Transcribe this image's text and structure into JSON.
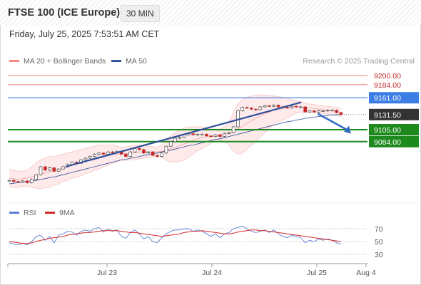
{
  "header": {
    "title": "FTSE 100 (ICE Europe)",
    "timeframe": "30 MIN",
    "datetime": "Friday, July 25, 2025 7:53:51 AM CET",
    "copyright": "Research © 2025 Trading Central"
  },
  "legend": {
    "bollinger": {
      "label": "MA 20 + Bollinger Bands",
      "color": "#f28b82"
    },
    "ma50": {
      "label": "MA 50",
      "color": "#2e5a9c"
    }
  },
  "sub_legend": {
    "rsi": {
      "label": "RSI",
      "color": "#5b7fd6"
    },
    "ma9": {
      "label": "9MA",
      "color": "#d62728"
    }
  },
  "colors": {
    "up_candle": "#ffffff",
    "down_candle": "#c62828",
    "support": "#1e8a1e",
    "resistance": "#f08080",
    "pivot": "#3d7ee6",
    "price": "#333333",
    "trendline": "#2f4f9a"
  },
  "chart_data": [
    {
      "type": "line",
      "chart": "price",
      "x_axis": {
        "ticks": [
          "Jul 23",
          "Jul 24",
          "Jul 25",
          "Aug 4"
        ]
      },
      "y_axis": {
        "ticks": []
      },
      "levels": [
        {
          "name": "resistance-2",
          "value": 9200.0,
          "label": "9200.00",
          "kind": "resistance"
        },
        {
          "name": "resistance-1",
          "value": 9184.0,
          "label": "9184.00",
          "kind": "resistance"
        },
        {
          "name": "pivot",
          "value": 9161.0,
          "label": "9161.00",
          "kind": "pivot"
        },
        {
          "name": "last-price",
          "value": 9131.5,
          "label": "9131.50",
          "kind": "price"
        },
        {
          "name": "support-1",
          "value": 9105.0,
          "label": "9105.00",
          "kind": "support"
        },
        {
          "name": "support-2",
          "value": 9084.0,
          "label": "9084.00",
          "kind": "support"
        }
      ],
      "close": [
        9016,
        9014,
        9013,
        9015,
        9012,
        9018,
        9026,
        9040,
        9034,
        9038,
        9032,
        9036,
        9040,
        9044,
        9048,
        9046,
        9052,
        9055,
        9058,
        9062,
        9064,
        9062,
        9066,
        9065,
        9067,
        9062,
        9058,
        9066,
        9072,
        9070,
        9064,
        9066,
        9060,
        9058,
        9064,
        9076,
        9084,
        9090,
        9092,
        9096,
        9098,
        9096,
        9097,
        9097,
        9094,
        9093,
        9096,
        9093,
        9098,
        9100,
        9110,
        9138,
        9144,
        9143,
        9141,
        9140,
        9145,
        9147,
        9146,
        9148,
        9145,
        9144,
        9143,
        9146,
        9145,
        9145,
        9136,
        9138,
        9136,
        9138,
        9138,
        9139,
        9139,
        9135,
        9131.5
      ],
      "ma20": [
        9020,
        9019,
        9018,
        9019,
        9020,
        9022,
        9024,
        9027,
        9029,
        9031,
        9033,
        9035,
        9038,
        9040,
        9043,
        9045,
        9047,
        9050,
        9052,
        9055,
        9057,
        9059,
        9060,
        9062,
        9062,
        9063,
        9063,
        9064,
        9065,
        9066,
        9066,
        9066,
        9066,
        9066,
        9067,
        9069,
        9071,
        9074,
        9077,
        9080,
        9083,
        9086,
        9089,
        9091,
        9092,
        9094,
        9095,
        9096,
        9097,
        9098,
        9101,
        9106,
        9111,
        9116,
        9121,
        9125,
        9129,
        9133,
        9136,
        9139,
        9141,
        9142,
        9143,
        9144,
        9145,
        9145,
        9144,
        9143,
        9142,
        9141,
        9140,
        9139,
        9138,
        9137,
        9135
      ],
      "upper_band": [
        9035,
        9034,
        9032,
        9032,
        9034,
        9040,
        9046,
        9052,
        9055,
        9058,
        9058,
        9060,
        9062,
        9064,
        9066,
        9068,
        9070,
        9072,
        9074,
        9076,
        9078,
        9078,
        9078,
        9078,
        9076,
        9074,
        9075,
        9076,
        9078,
        9078,
        9077,
        9076,
        9075,
        9074,
        9078,
        9086,
        9094,
        9100,
        9104,
        9108,
        9110,
        9110,
        9110,
        9110,
        9108,
        9106,
        9106,
        9106,
        9110,
        9118,
        9135,
        9150,
        9158,
        9162,
        9164,
        9165,
        9166,
        9166,
        9165,
        9164,
        9163,
        9162,
        9160,
        9158,
        9156,
        9154,
        9152,
        9150,
        9149,
        9148,
        9147,
        9146,
        9145,
        9144,
        9142
      ],
      "lower_band": [
        9005,
        9004,
        9004,
        9006,
        9006,
        9004,
        9002,
        9002,
        9003,
        9004,
        9008,
        9010,
        9014,
        9016,
        9020,
        9022,
        9024,
        9028,
        9030,
        9034,
        9036,
        9040,
        9042,
        9046,
        9048,
        9052,
        9051,
        9052,
        9052,
        9054,
        9055,
        9056,
        9057,
        9058,
        9056,
        9052,
        9048,
        9048,
        9050,
        9052,
        9056,
        9062,
        9068,
        9072,
        9076,
        9082,
        9084,
        9086,
        9084,
        9078,
        9067,
        9062,
        9064,
        9070,
        9078,
        9085,
        9092,
        9100,
        9107,
        9114,
        9119,
        9122,
        9126,
        9130,
        9134,
        9136,
        9136,
        9136,
        9135,
        9134,
        9133,
        9132,
        9131,
        9130,
        9128
      ],
      "ma50": [
        9010,
        9011,
        9012,
        9013,
        9014,
        9015,
        9016,
        9018,
        9019,
        9021,
        9022,
        9024,
        9026,
        9028,
        9030,
        9032,
        9034,
        9036,
        9038,
        9040,
        9042,
        9044,
        9046,
        9048,
        9050,
        9052,
        9053,
        9055,
        9056,
        9058,
        9060,
        9061,
        9063,
        9064,
        9066,
        9068,
        9069,
        9071,
        9073,
        9075,
        9077,
        9078,
        9080,
        9082,
        9084,
        9086,
        9088,
        9089,
        9091,
        9093,
        9095,
        9097,
        9099,
        9101,
        9103,
        9105,
        9107,
        9109,
        9111,
        9113,
        9115,
        9117,
        9119,
        9120,
        9122,
        9123,
        9125,
        9126,
        9127,
        9128,
        9129,
        9130,
        9131,
        9131,
        9132
      ],
      "trendlines": [
        {
          "from": [
            0.17,
            9040
          ],
          "to": [
            0.88,
            9153
          ]
        }
      ],
      "forecast_arrow": {
        "from": [
          0.93,
          9133
        ],
        "to": [
          1.03,
          9098
        ]
      }
    },
    {
      "type": "line",
      "chart": "rsi",
      "y_axis": {
        "ticks": [
          "70",
          "50",
          "30"
        ],
        "range": [
          20,
          80
        ]
      },
      "series": [
        {
          "name": "RSI",
          "values": [
            48,
            46,
            45,
            47,
            45,
            50,
            58,
            60,
            52,
            58,
            48,
            60,
            62,
            66,
            65,
            60,
            66,
            68,
            66,
            70,
            72,
            65,
            70,
            66,
            68,
            58,
            55,
            64,
            68,
            62,
            54,
            58,
            50,
            48,
            56,
            62,
            66,
            68,
            68,
            70,
            70,
            66,
            68,
            66,
            62,
            58,
            62,
            56,
            62,
            64,
            70,
            72,
            74,
            70,
            66,
            64,
            66,
            68,
            64,
            68,
            62,
            58,
            56,
            60,
            58,
            56,
            48,
            52,
            50,
            54,
            52,
            54,
            52,
            48,
            46
          ]
        },
        {
          "name": "9MA",
          "values": [
            50,
            49,
            48,
            47,
            47,
            48,
            50,
            52,
            53,
            55,
            56,
            57,
            58,
            60,
            61,
            62,
            63,
            64,
            64,
            65,
            66,
            67,
            67,
            67,
            67,
            66,
            65,
            64,
            64,
            63,
            62,
            61,
            60,
            59,
            58,
            59,
            60,
            61,
            62,
            64,
            65,
            66,
            66,
            67,
            66,
            65,
            64,
            63,
            62,
            62,
            63,
            65,
            66,
            67,
            68,
            68,
            67,
            67,
            66,
            65,
            64,
            63,
            62,
            61,
            60,
            59,
            58,
            57,
            56,
            55,
            54,
            53,
            52,
            51,
            50
          ]
        }
      ]
    }
  ]
}
